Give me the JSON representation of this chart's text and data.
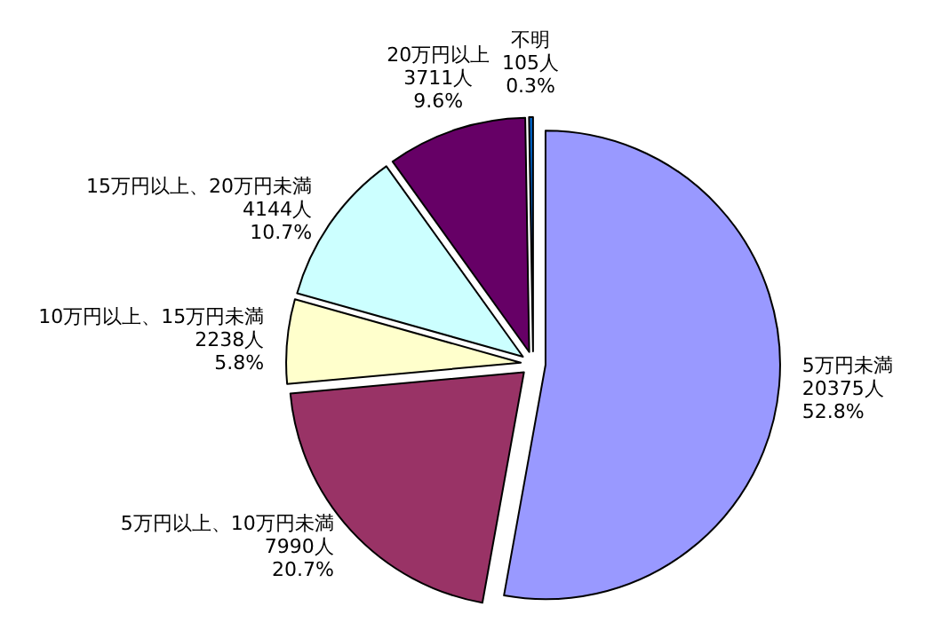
{
  "chart_data": {
    "type": "pie",
    "categories": [
      "5万円未満",
      "5万円以上、10万円未満",
      "10万円以上、15万円未満",
      "15万円以上、20万円未満",
      "20万円以上",
      "不明"
    ],
    "values": [
      20375,
      7990,
      2238,
      4144,
      3711,
      105
    ],
    "value_labels": [
      "20375人\n52.8%",
      "7990人\n20.7%",
      "2238人\n5.8%",
      "4144人\n10.7%",
      "3711人\n9.6%",
      "105人\n0.3%"
    ],
    "colors": [
      "#9999ff",
      "#993366",
      "#ffffcc",
      "#ccffff",
      "#660066",
      "#0066cc"
    ]
  }
}
